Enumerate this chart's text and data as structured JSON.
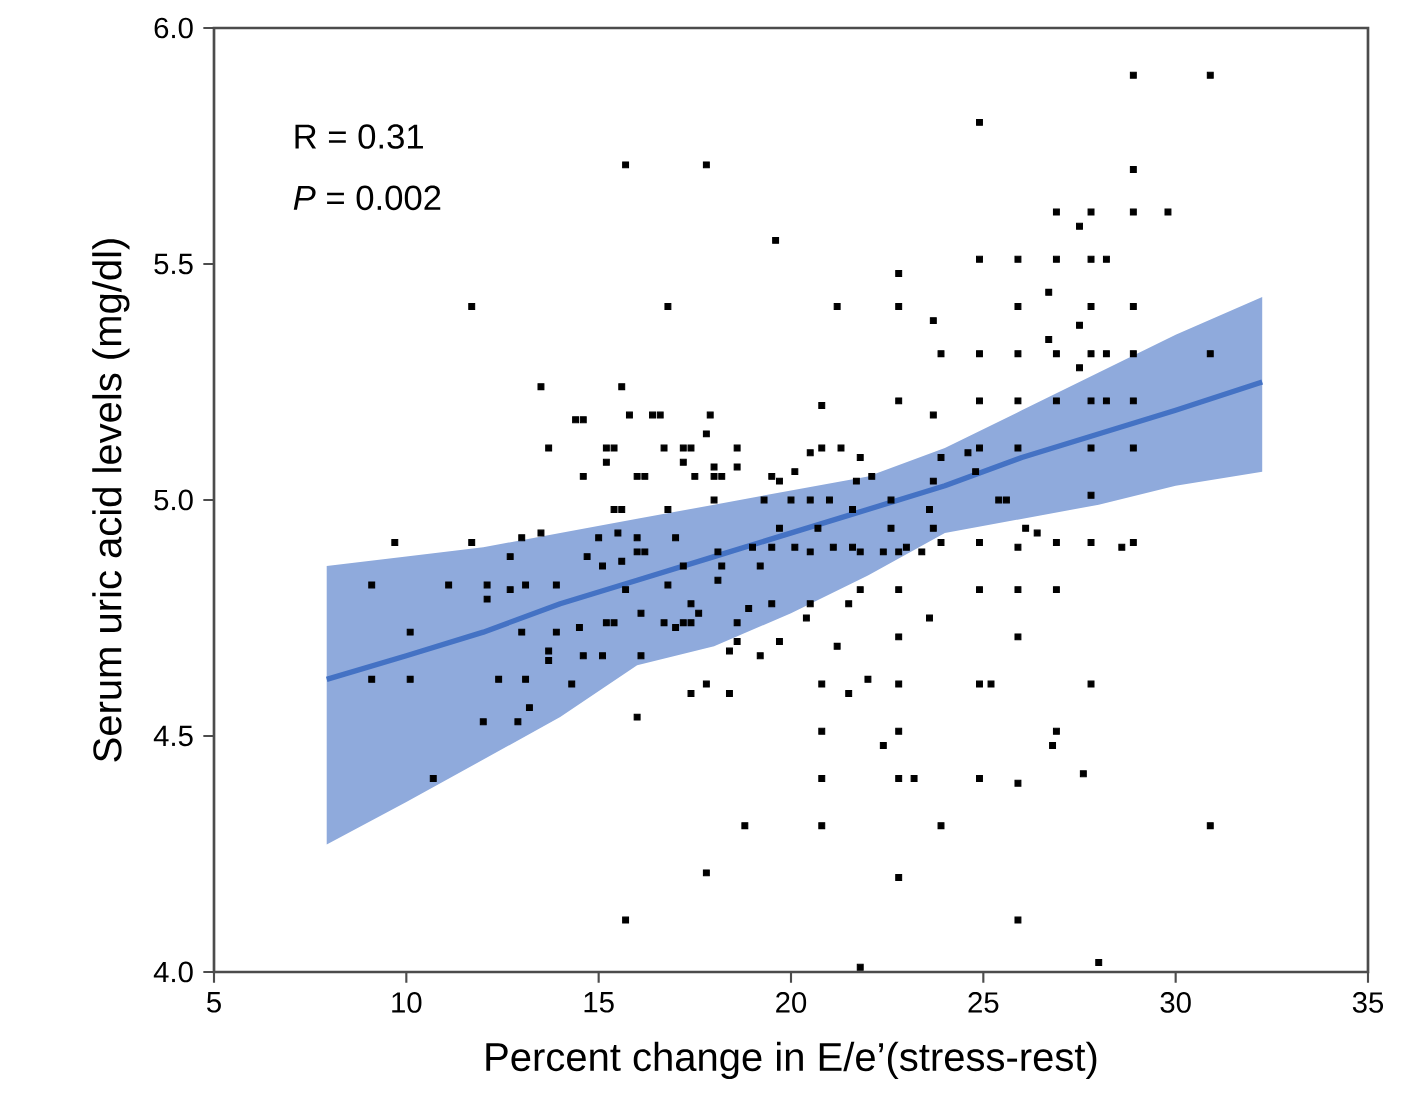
{
  "chart_data": {
    "type": "scatter",
    "xlabel": "Percent change in E/e’(stress-rest)",
    "ylabel": "Serum uric acid levels (mg/dl)",
    "annotations": [
      "R = 0.31",
      "*P* = 0.002"
    ],
    "xlim": [
      5,
      35
    ],
    "xticks": [
      5,
      10,
      15,
      20,
      25,
      30,
      35
    ],
    "ylim": [
      4,
      6
    ],
    "yticks": [
      {
        "value": 4,
        "label": "4.0"
      },
      {
        "value": 4.5,
        "label": "4.5"
      },
      {
        "value": 5,
        "label": "5.0"
      },
      {
        "value": 5.5,
        "label": "5.5"
      },
      {
        "value": 6,
        "label": "6.0"
      }
    ],
    "series": [
      {
        "color": "#000000",
        "marker": "square",
        "x": [
          11.7,
          13.5,
          14.4,
          14.6,
          13.7,
          14.6,
          9.7,
          11.7,
          13.0,
          13.5,
          12.7,
          14.7,
          9.1,
          11.1,
          12.1,
          12.7,
          13.1,
          13.9,
          12.1,
          10.1,
          13.0,
          13.9,
          14.5,
          13.7,
          14.6,
          13.7,
          9.1,
          10.1,
          12.4,
          13.1,
          14.3,
          13.2,
          12.0,
          12.9,
          10.7,
          16.8,
          21.2,
          22.8,
          23.7,
          23.9,
          15.6,
          15.8,
          16.4,
          16.6,
          17.9,
          20.8,
          22.8,
          23.7,
          17.8,
          15.2,
          15.4,
          16.7,
          17.2,
          17.4,
          18.6,
          20.8,
          21.3,
          20.5,
          21.8,
          23.9,
          15.2,
          17.2,
          18.0,
          18.6,
          20.1,
          16.0,
          16.2,
          17.5,
          18.0,
          18.2,
          19.5,
          19.7,
          21.7,
          22.1,
          23.7,
          18.0,
          19.3,
          20.0,
          20.5,
          21.0,
          21.6,
          22.6,
          23.6,
          15.4,
          15.6,
          16.8,
          19.7,
          20.7,
          22.6,
          23.7,
          15.0,
          15.5,
          16.0,
          17.0,
          15.6,
          16.0,
          16.2,
          15.1,
          17.2,
          18.1,
          18.2,
          19.0,
          19.2,
          19.5,
          20.1,
          20.5,
          21.1,
          21.6,
          21.8,
          22.4,
          22.8,
          23.0,
          23.4,
          23.9,
          15.7,
          16.8,
          18.1,
          17.4,
          19.5,
          20.5,
          21.5,
          21.8,
          22.8,
          17.6,
          18.9,
          16.1,
          20.4,
          23.6,
          15.2,
          15.4,
          16.7,
          17.0,
          17.2,
          17.4,
          18.6,
          18.6,
          18.4,
          19.7,
          21.2,
          22.8,
          15.1,
          16.1,
          19.2,
          17.8,
          20.8,
          22.8,
          22.0,
          17.4,
          18.4,
          21.5,
          16.0,
          20.8,
          22.8,
          22.4,
          20.8,
          22.8,
          23.2,
          18.8,
          20.8,
          23.9,
          17.8,
          22.8,
          15.7,
          21.8,
          28.9,
          30.9,
          24.9,
          28.9,
          26.9,
          27.8,
          28.9,
          29.8,
          27.5,
          24.9,
          25.9,
          26.9,
          27.8,
          28.2,
          26.7,
          25.9,
          27.8,
          28.9,
          27.5,
          26.7,
          24.9,
          25.9,
          26.9,
          27.8,
          28.2,
          28.9,
          30.9,
          27.5,
          24.9,
          25.9,
          26.9,
          27.8,
          28.2,
          28.9,
          24.9,
          25.9,
          27.8,
          28.9,
          24.6,
          24.8,
          27.8,
          25.4,
          25.6,
          26.1,
          26.4,
          24.9,
          25.9,
          26.9,
          27.8,
          28.6,
          28.9,
          24.9,
          25.9,
          26.9,
          25.9,
          24.9,
          25.2,
          27.8,
          26.9,
          26.8,
          27.6,
          24.9,
          25.9,
          30.9,
          25.9,
          28.0,
          15.7,
          17.8,
          19.6,
          22.8
        ],
        "values": [
          5.41,
          5.24,
          5.17,
          5.17,
          5.11,
          5.05,
          4.91,
          4.91,
          4.92,
          4.93,
          4.88,
          4.88,
          4.82,
          4.82,
          4.82,
          4.81,
          4.82,
          4.82,
          4.79,
          4.72,
          4.72,
          4.72,
          4.73,
          4.68,
          4.67,
          4.66,
          4.62,
          4.62,
          4.62,
          4.62,
          4.61,
          4.56,
          4.53,
          4.53,
          4.41,
          5.41,
          5.41,
          5.41,
          5.38,
          5.31,
          5.24,
          5.18,
          5.18,
          5.18,
          5.18,
          5.2,
          5.21,
          5.18,
          5.14,
          5.11,
          5.11,
          5.11,
          5.11,
          5.11,
          5.11,
          5.11,
          5.11,
          5.1,
          5.09,
          5.09,
          5.08,
          5.08,
          5.07,
          5.07,
          5.06,
          5.05,
          5.05,
          5.05,
          5.05,
          5.05,
          5.05,
          5.04,
          5.04,
          5.05,
          5.04,
          5.0,
          5.0,
          5.0,
          5.0,
          5.0,
          4.98,
          5.0,
          4.98,
          4.98,
          4.98,
          4.98,
          4.94,
          4.94,
          4.94,
          4.94,
          4.92,
          4.93,
          4.92,
          4.92,
          4.87,
          4.89,
          4.89,
          4.86,
          4.86,
          4.89,
          4.86,
          4.9,
          4.86,
          4.9,
          4.9,
          4.89,
          4.9,
          4.9,
          4.89,
          4.89,
          4.89,
          4.9,
          4.89,
          4.91,
          4.81,
          4.82,
          4.83,
          4.78,
          4.78,
          4.78,
          4.78,
          4.81,
          4.81,
          4.76,
          4.77,
          4.76,
          4.75,
          4.75,
          4.74,
          4.74,
          4.74,
          4.73,
          4.74,
          4.74,
          4.74,
          4.7,
          4.68,
          4.7,
          4.69,
          4.71,
          4.67,
          4.67,
          4.67,
          4.61,
          4.61,
          4.61,
          4.62,
          4.59,
          4.59,
          4.59,
          4.54,
          4.51,
          4.51,
          4.48,
          4.41,
          4.41,
          4.41,
          4.31,
          4.31,
          4.31,
          4.21,
          4.2,
          4.11,
          4.01,
          5.9,
          5.9,
          5.8,
          5.7,
          5.61,
          5.61,
          5.61,
          5.61,
          5.58,
          5.51,
          5.51,
          5.51,
          5.51,
          5.51,
          5.44,
          5.41,
          5.41,
          5.41,
          5.37,
          5.34,
          5.31,
          5.31,
          5.31,
          5.31,
          5.31,
          5.31,
          5.31,
          5.28,
          5.21,
          5.21,
          5.21,
          5.21,
          5.21,
          5.21,
          5.11,
          5.11,
          5.11,
          5.11,
          5.1,
          5.06,
          5.01,
          5.0,
          5.0,
          4.94,
          4.93,
          4.91,
          4.9,
          4.91,
          4.91,
          4.9,
          4.91,
          4.81,
          4.81,
          4.81,
          4.71,
          4.61,
          4.61,
          4.61,
          4.51,
          4.48,
          4.42,
          4.41,
          4.4,
          4.31,
          4.11,
          4.02,
          5.71,
          5.71,
          5.55,
          5.48
        ]
      },
      {
        "type": "line",
        "color": "#4472c4",
        "x": [
          7.93,
          10,
          12,
          14,
          16,
          18,
          20,
          22,
          24,
          26,
          28,
          30,
          32.25
        ],
        "values": [
          4.62,
          4.67,
          4.72,
          4.78,
          4.83,
          4.88,
          4.93,
          4.98,
          5.03,
          5.09,
          5.14,
          5.19,
          5.25
        ],
        "lower": [
          4.27,
          4.36,
          4.45,
          4.54,
          4.65,
          4.69,
          4.76,
          4.84,
          4.93,
          4.96,
          4.99,
          5.03,
          5.06
        ],
        "upper": [
          4.86,
          4.88,
          4.9,
          4.93,
          4.96,
          4.99,
          5.02,
          5.05,
          5.11,
          5.19,
          5.27,
          5.35,
          5.43
        ]
      }
    ]
  }
}
